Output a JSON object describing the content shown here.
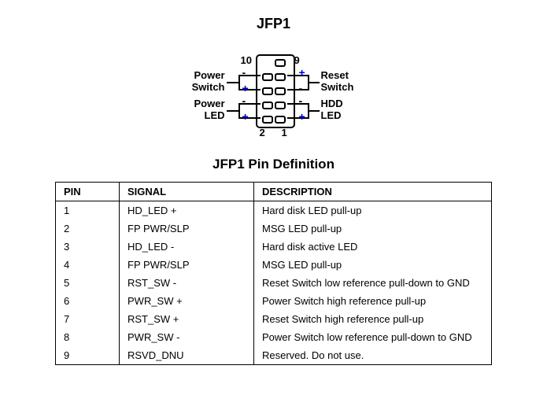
{
  "header": {
    "title": "JFP1"
  },
  "diagram": {
    "pin_numbers": {
      "top_left": "10",
      "top_right": "9",
      "bottom_left": "2",
      "bottom_right": "1"
    },
    "left_labels": {
      "power_switch": {
        "line1": "Power",
        "line2": "Switch",
        "sign_top": "-",
        "sign_bot": "+"
      },
      "power_led": {
        "line1": "Power",
        "line2": "LED",
        "sign_top": "-",
        "sign_bot": "+"
      }
    },
    "right_labels": {
      "reset_switch": {
        "line1": "Reset",
        "line2": "Switch",
        "sign_top": "+",
        "sign_bot": "-"
      },
      "hdd_led": {
        "line1": "HDD",
        "line2": "LED",
        "sign_top": "-",
        "sign_bot": "+"
      }
    },
    "colors": {
      "plus": "#0000cc",
      "minus": "#000000",
      "border": "#000000",
      "bg": "#ffffff"
    }
  },
  "table": {
    "title": "JFP1 Pin Definition",
    "columns": [
      "PIN",
      "SIGNAL",
      "DESCRIPTION"
    ],
    "rows": [
      [
        "1",
        "HD_LED +",
        "Hard disk LED pull-up"
      ],
      [
        "2",
        "FP PWR/SLP",
        "MSG LED pull-up"
      ],
      [
        "3",
        "HD_LED -",
        "Hard disk active LED"
      ],
      [
        "4",
        "FP PWR/SLP",
        "MSG LED pull-up"
      ],
      [
        "5",
        "RST_SW -",
        "Reset Switch low reference pull-down to GND"
      ],
      [
        "6",
        "PWR_SW +",
        "Power Switch high reference pull-up"
      ],
      [
        "7",
        "RST_SW +",
        "Reset Switch high reference pull-up"
      ],
      [
        "8",
        "PWR_SW -",
        "Power Switch low reference pull-down to GND"
      ],
      [
        "9",
        "RSVD_DNU",
        "Reserved. Do not use."
      ]
    ]
  }
}
